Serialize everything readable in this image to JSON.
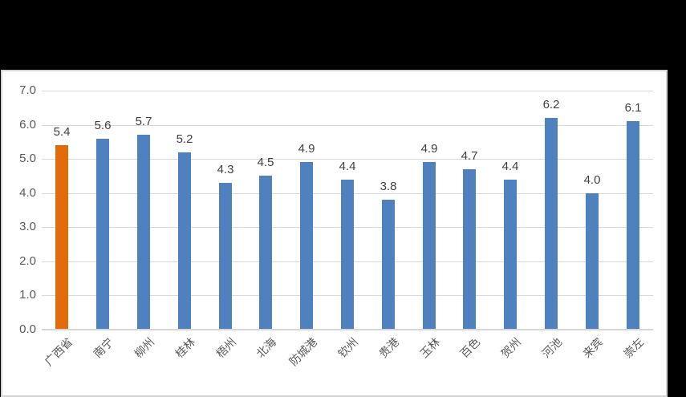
{
  "chart_data": {
    "type": "bar",
    "categories": [
      "广西省",
      "南宁",
      "柳州",
      "桂林",
      "梧州",
      "北海",
      "防城港",
      "钦州",
      "贵港",
      "玉林",
      "百色",
      "贺州",
      "河池",
      "来宾",
      "崇左"
    ],
    "values": [
      5.4,
      5.6,
      5.7,
      5.2,
      4.3,
      4.5,
      4.9,
      4.4,
      3.8,
      4.9,
      4.7,
      4.4,
      6.2,
      4.0,
      6.1
    ],
    "data_labels": [
      "5.4",
      "5.6",
      "5.7",
      "5.2",
      "4.3",
      "4.5",
      "4.9",
      "4.4",
      "3.8",
      "4.9",
      "4.7",
      "4.4",
      "6.2",
      "4.0",
      "6.1"
    ],
    "title": "",
    "xlabel": "",
    "ylabel": "",
    "ylim": [
      0.0,
      7.0
    ],
    "ytick_labels": [
      "0.0",
      "1.0",
      "2.0",
      "3.0",
      "4.0",
      "5.0",
      "6.0",
      "7.0"
    ],
    "grid": true,
    "legend": false,
    "highlight_index": 0
  },
  "colors": {
    "page_background": "#000000",
    "panel_background": "#ffffff",
    "panel_border": "#d3d3d3",
    "gridline": "#d9d9d9",
    "axis_line": "#d6d6d6",
    "bar_default": "#4e81bd",
    "bar_highlight": "#e36c0a",
    "tick_label": "#595959",
    "value_label": "#3f3f3f"
  }
}
